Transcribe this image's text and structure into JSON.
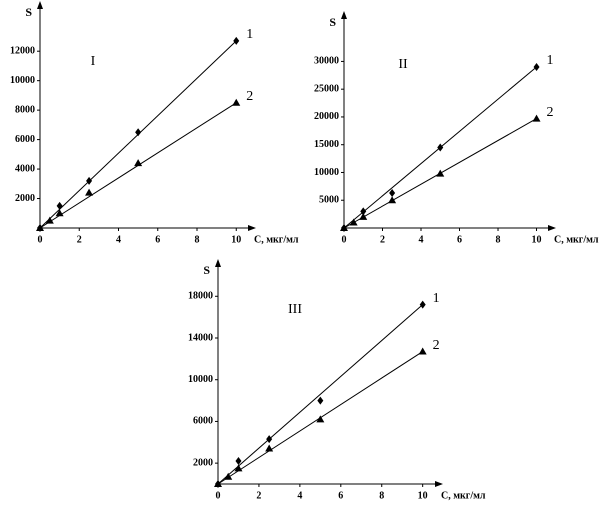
{
  "chart_data": [
    {
      "type": "scatter",
      "title": "I",
      "ylabel": "S",
      "xlabel": "C, мкг/мл",
      "xlim": [
        0,
        10.7
      ],
      "xticks": [
        0,
        2,
        4,
        6,
        8,
        10
      ],
      "ylim": [
        0,
        15000
      ],
      "yticks": [
        2000,
        4000,
        6000,
        8000,
        10000,
        12000
      ],
      "series": [
        {
          "name": "1",
          "color": "#000000",
          "marker": "diamond",
          "x": [
            0,
            1,
            2.5,
            5,
            10
          ],
          "values": [
            0,
            1500,
            3200,
            6500,
            12700
          ]
        },
        {
          "name": "2",
          "color": "#000000",
          "marker": "triangle",
          "x": [
            0,
            0.5,
            1,
            2.5,
            5,
            10
          ],
          "values": [
            0,
            500,
            1000,
            2400,
            4400,
            8500
          ]
        }
      ]
    },
    {
      "type": "scatter",
      "title": "II",
      "ylabel": "S",
      "xlabel": "C, мкг/мл",
      "xlim": [
        0,
        10.7
      ],
      "xticks": [
        0,
        2,
        4,
        6,
        8,
        10
      ],
      "ylim": [
        0,
        38000
      ],
      "yticks": [
        5000,
        10000,
        15000,
        20000,
        25000,
        30000
      ],
      "series": [
        {
          "name": "1",
          "color": "#000000",
          "marker": "diamond",
          "x": [
            0,
            1,
            2.5,
            5,
            10
          ],
          "values": [
            0,
            3000,
            6300,
            14500,
            29000
          ]
        },
        {
          "name": "2",
          "color": "#000000",
          "marker": "triangle",
          "x": [
            0,
            0.5,
            1,
            2.5,
            5,
            10
          ],
          "values": [
            0,
            1000,
            2000,
            5000,
            9800,
            19700
          ]
        }
      ]
    },
    {
      "type": "scatter",
      "title": "III",
      "ylabel": "S",
      "xlabel": "C, мкг/мл",
      "xlim": [
        0,
        10.7
      ],
      "xticks": [
        0,
        2,
        4,
        6,
        8,
        10
      ],
      "ylim": [
        0,
        21000
      ],
      "yticks": [
        2000,
        6000,
        10000,
        14000,
        18000
      ],
      "series": [
        {
          "name": "1",
          "color": "#000000",
          "marker": "diamond",
          "x": [
            0,
            1,
            2.5,
            5,
            10
          ],
          "values": [
            0,
            2200,
            4300,
            8000,
            17200
          ]
        },
        {
          "name": "2",
          "color": "#000000",
          "marker": "triangle",
          "x": [
            0,
            0.5,
            1,
            2.5,
            5,
            10
          ],
          "values": [
            0,
            700,
            1500,
            3400,
            6200,
            12700
          ]
        }
      ]
    }
  ]
}
